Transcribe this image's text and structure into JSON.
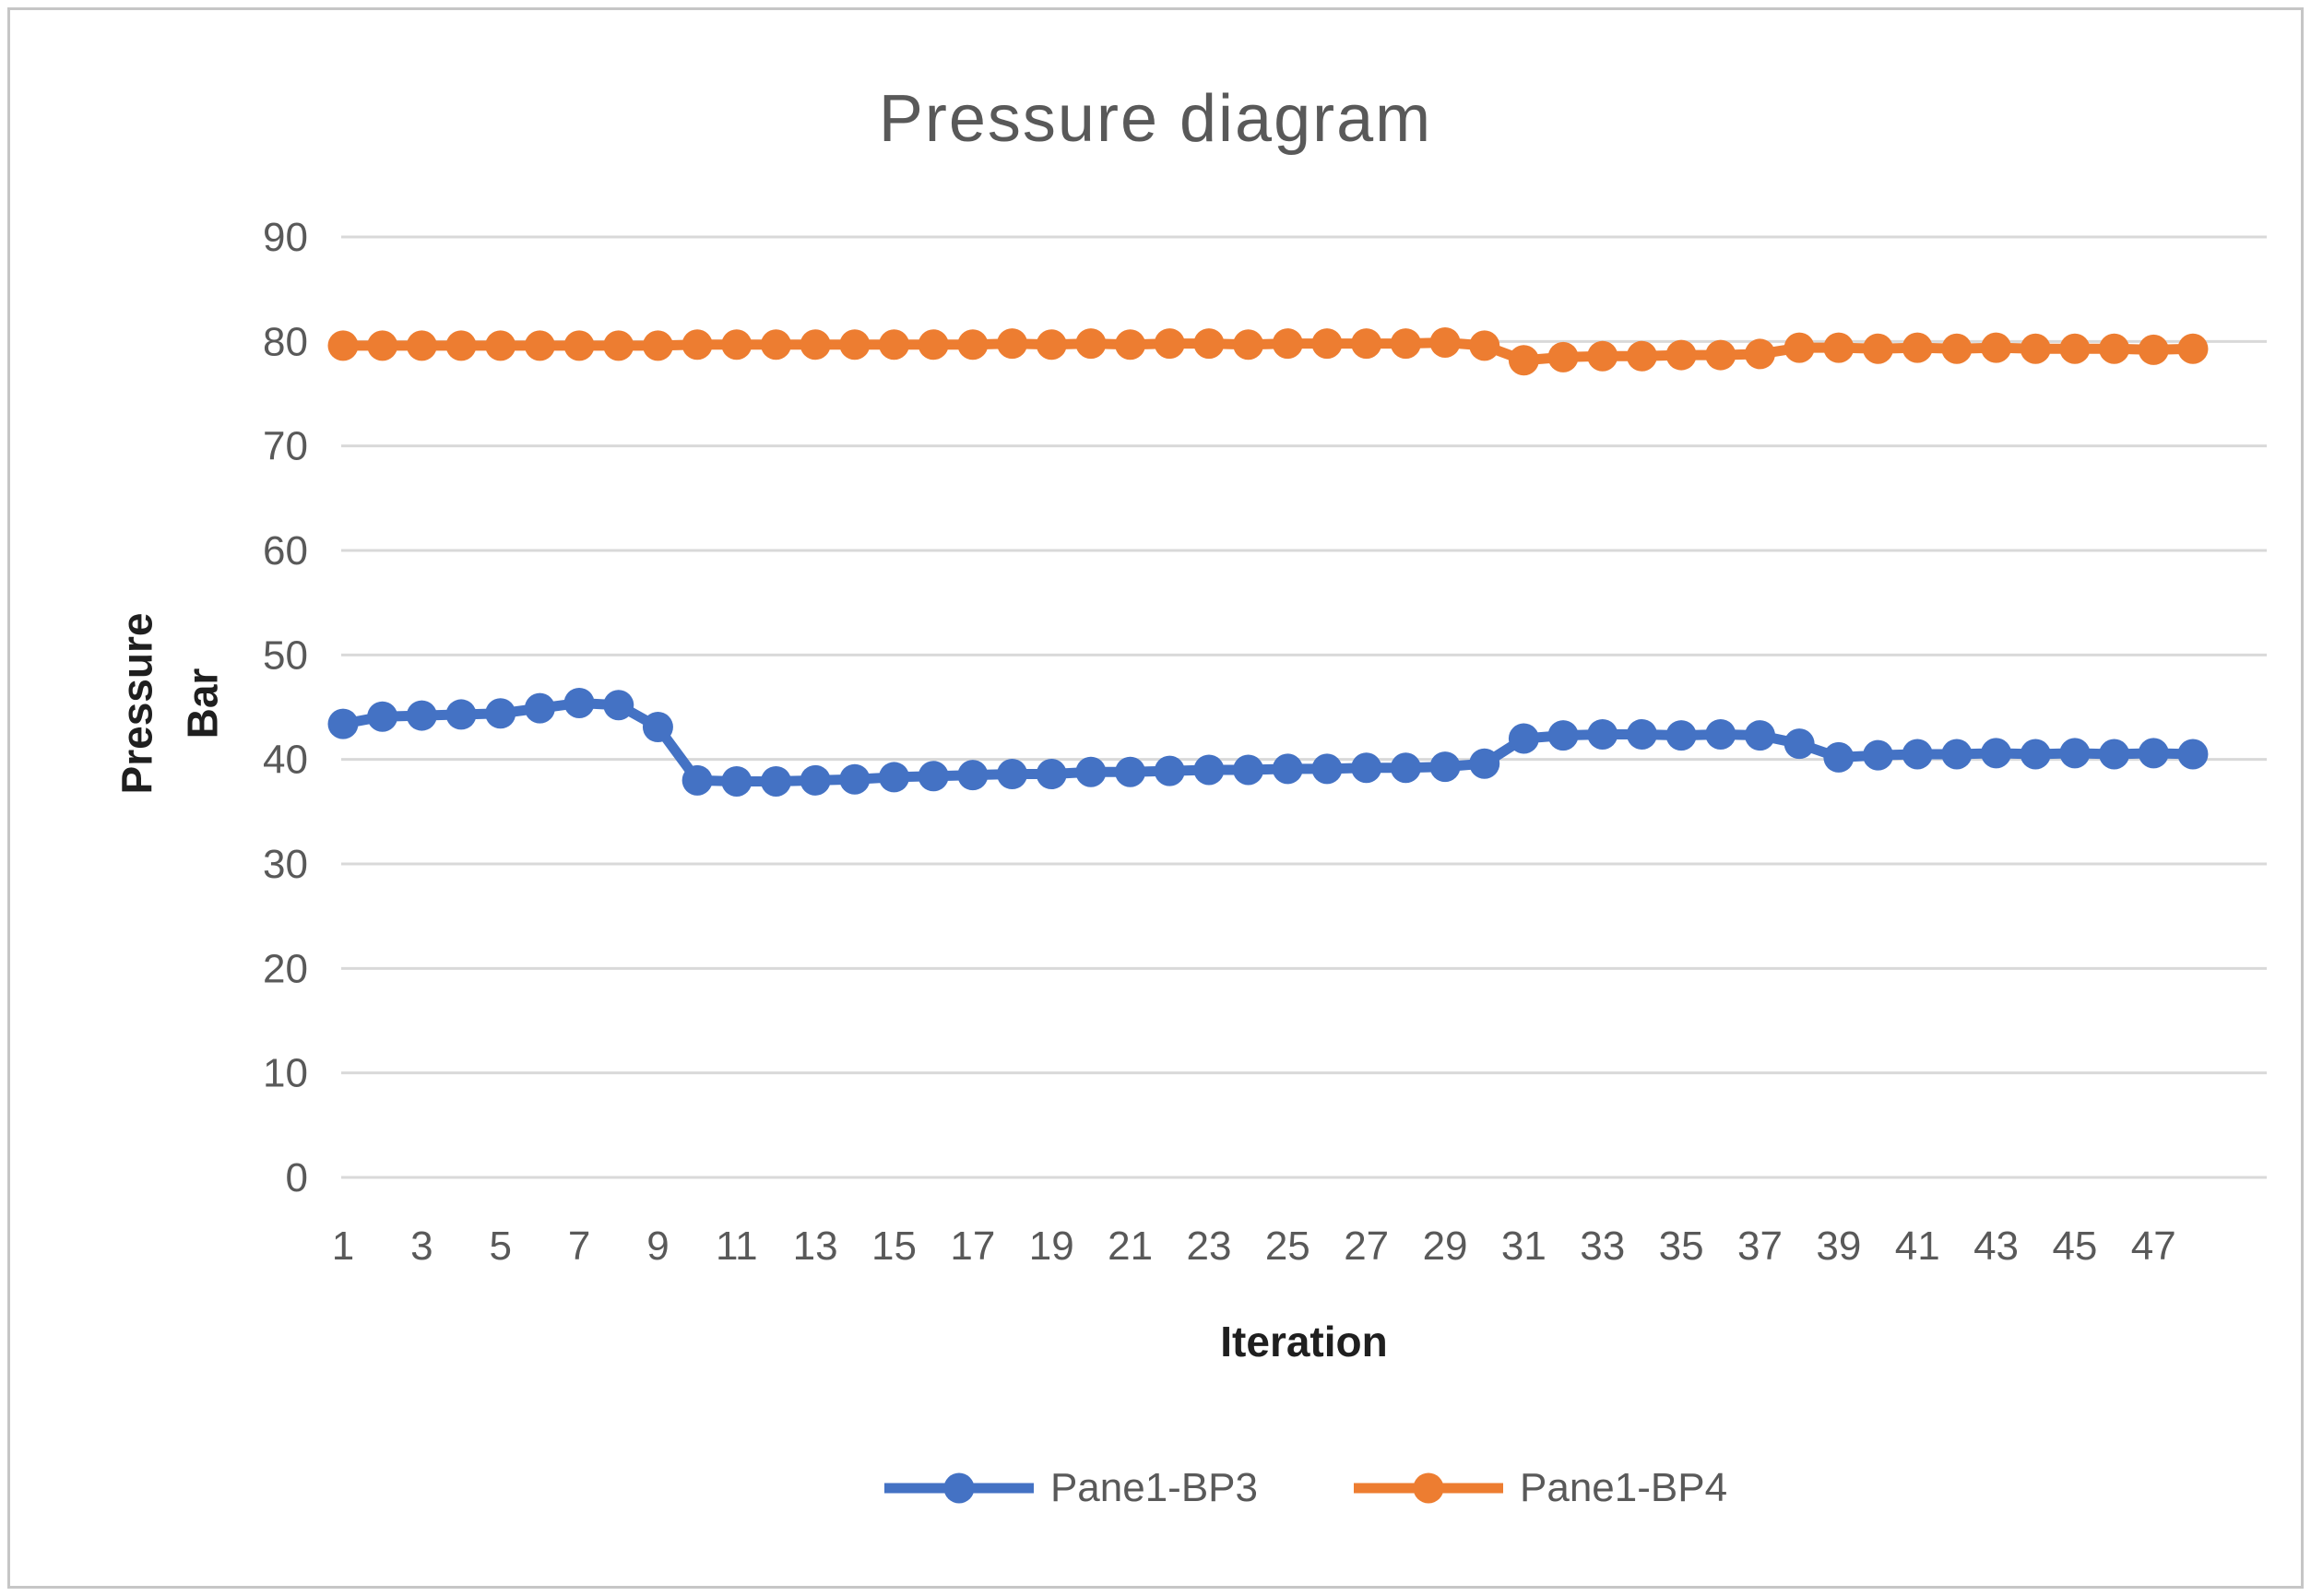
{
  "chart_data": {
    "type": "line",
    "title": "Pressure diagram",
    "xlabel": "Iteration",
    "ylabel": "Pressure Bar",
    "ylabel_lines": [
      "Pressure",
      "Bar"
    ],
    "ylim": [
      0,
      90
    ],
    "yticks": [
      0,
      10,
      20,
      30,
      40,
      50,
      60,
      70,
      80,
      90
    ],
    "xticks_shown": [
      1,
      3,
      5,
      7,
      9,
      11,
      13,
      15,
      17,
      19,
      21,
      23,
      25,
      27,
      29,
      31,
      33,
      35,
      37,
      39,
      41,
      43,
      45,
      47
    ],
    "x": [
      1,
      2,
      3,
      4,
      5,
      6,
      7,
      8,
      9,
      10,
      11,
      12,
      13,
      14,
      15,
      16,
      17,
      18,
      19,
      20,
      21,
      22,
      23,
      24,
      25,
      26,
      27,
      28,
      29,
      30,
      31,
      32,
      33,
      34,
      35,
      36,
      37,
      38,
      39,
      40,
      41,
      42,
      43,
      44,
      45,
      46,
      47,
      48
    ],
    "grid": "horizontal",
    "legend_position": "bottom",
    "marker": "circle",
    "series": [
      {
        "name": "Pane1-BP3",
        "color": "#4472C4",
        "values": [
          43.4,
          44.1,
          44.2,
          44.3,
          44.4,
          44.9,
          45.4,
          45.2,
          43.1,
          38.0,
          37.9,
          37.9,
          38.0,
          38.1,
          38.3,
          38.4,
          38.5,
          38.6,
          38.6,
          38.8,
          38.8,
          38.9,
          39.0,
          39.0,
          39.1,
          39.1,
          39.2,
          39.2,
          39.3,
          39.6,
          42.0,
          42.3,
          42.4,
          42.4,
          42.3,
          42.4,
          42.3,
          41.5,
          40.2,
          40.4,
          40.5,
          40.5,
          40.6,
          40.5,
          40.6,
          40.5,
          40.6,
          40.5
        ]
      },
      {
        "name": "Pane1-BP4",
        "color": "#ED7D31",
        "values": [
          79.6,
          79.6,
          79.6,
          79.6,
          79.6,
          79.6,
          79.6,
          79.6,
          79.6,
          79.7,
          79.7,
          79.7,
          79.7,
          79.7,
          79.7,
          79.7,
          79.7,
          79.8,
          79.7,
          79.8,
          79.7,
          79.8,
          79.8,
          79.7,
          79.8,
          79.8,
          79.8,
          79.8,
          79.9,
          79.6,
          78.2,
          78.5,
          78.6,
          78.6,
          78.7,
          78.7,
          78.8,
          79.4,
          79.4,
          79.3,
          79.4,
          79.3,
          79.4,
          79.3,
          79.3,
          79.3,
          79.2,
          79.3
        ]
      }
    ]
  },
  "colors": {
    "gridline": "#D9D9D9",
    "tick_text": "#595959",
    "title_text": "#595959",
    "axis_title_text": "#1f1f1f",
    "frame_border": "#c6c6c6",
    "background": "#ffffff"
  }
}
